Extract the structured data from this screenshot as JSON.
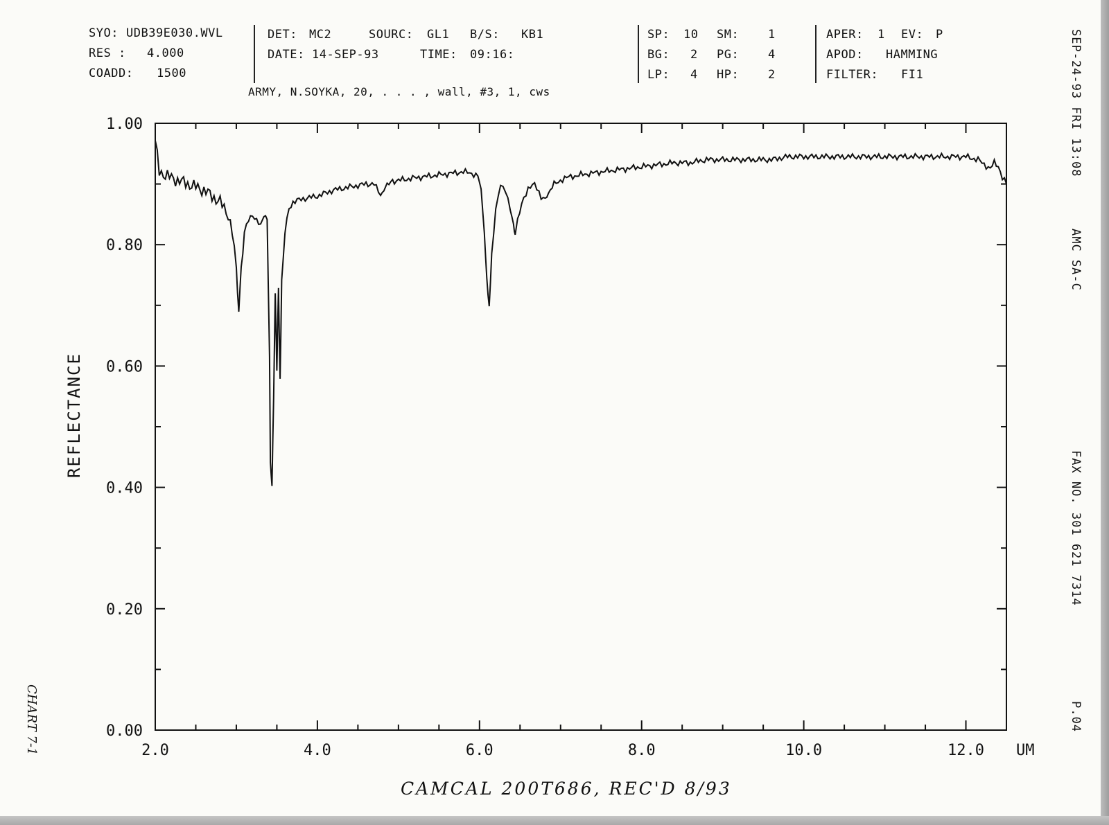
{
  "header": {
    "file_label": "SYO:",
    "file_value": "UDB39E030.WVL",
    "res_label": "RES :",
    "res_value": "4.000",
    "coadd_label": "COADD:",
    "coadd_value": "1500",
    "det_label": "DET:",
    "det_value": "MC2",
    "source_label": "SOURC:",
    "source_value": "GL1",
    "bs_label": "B/S:",
    "bs_value": "KB1",
    "date_label": "DATE:",
    "date_value": "14-SEP-93",
    "time_label": "TIME:",
    "time_value": "09:16:",
    "sample_note": "ARMY, N.SOYKA, 20, . . . , wall, #3, 1, cws",
    "sp_label": "SP:",
    "sp_value": "10",
    "sm_label": "SM:",
    "sm_value": "1",
    "bg_label": "BG:",
    "bg_value": "2",
    "pg_label": "PG:",
    "pg_value": "4",
    "lp_label": "LP:",
    "lp_value": "4",
    "hp_label": "HP:",
    "hp_value": "2",
    "aper_label": "APER:",
    "aper_value": "1",
    "ev_label": "EV:",
    "ev_value": "P",
    "apod_label": "APOD:",
    "apod_value": "HAMMING",
    "filter_label": "FILTER:",
    "filter_value": "FI1"
  },
  "fax": {
    "timestamp": "SEP-24-93 FRI 13:08",
    "sender": "AMC SA-C",
    "fax_number": "FAX NO. 301 621 7314",
    "page": "P.04"
  },
  "annotations": {
    "handwritten_bottom": "CAMCAL 200T686, REC'D 8/93",
    "handwritten_left": "CHART 7-1"
  },
  "chart_data": {
    "type": "line",
    "title": "",
    "xlabel": "UM",
    "ylabel": "REFLECTANCE",
    "xlim": [
      2.0,
      12.5
    ],
    "ylim": [
      0.0,
      1.0
    ],
    "xticks": [
      "2.0",
      "4.0",
      "6.0",
      "8.0",
      "10.0",
      "12.0"
    ],
    "yticks": [
      "0.00",
      "0.20",
      "0.40",
      "0.60",
      "0.80",
      "1.00"
    ],
    "grid": false,
    "series": [
      {
        "x": [
          2.0,
          2.05,
          2.2,
          2.4,
          2.6,
          2.8,
          2.9,
          2.95,
          3.0,
          3.03,
          3.06,
          3.1,
          3.15,
          3.2,
          3.25,
          3.3,
          3.34,
          3.38,
          3.41,
          3.42,
          3.44,
          3.46,
          3.48,
          3.5,
          3.52,
          3.54,
          3.56,
          3.6,
          3.65,
          3.7,
          3.8,
          4.0,
          4.2,
          4.4,
          4.6,
          4.7,
          4.78,
          4.82,
          4.86,
          4.95,
          5.2,
          5.5,
          5.8,
          5.98,
          6.02,
          6.06,
          6.09,
          6.12,
          6.15,
          6.2,
          6.26,
          6.32,
          6.38,
          6.42,
          6.44,
          6.47,
          6.52,
          6.6,
          6.68,
          6.76,
          6.81,
          6.85,
          6.92,
          7.05,
          7.25,
          7.5,
          7.8,
          8.1,
          8.4,
          8.6,
          8.8,
          9.0,
          9.3,
          9.6,
          9.8,
          10.0,
          10.2,
          10.5,
          10.8,
          11.1,
          11.4,
          11.7,
          12.0,
          12.15,
          12.25,
          12.3,
          12.35,
          12.4,
          12.45,
          12.5
        ],
        "y": [
          0.97,
          0.92,
          0.91,
          0.9,
          0.89,
          0.87,
          0.85,
          0.82,
          0.76,
          0.69,
          0.76,
          0.82,
          0.84,
          0.85,
          0.84,
          0.83,
          0.85,
          0.84,
          0.62,
          0.44,
          0.4,
          0.55,
          0.72,
          0.59,
          0.73,
          0.58,
          0.74,
          0.82,
          0.86,
          0.87,
          0.875,
          0.88,
          0.89,
          0.895,
          0.9,
          0.9,
          0.88,
          0.89,
          0.9,
          0.905,
          0.91,
          0.915,
          0.92,
          0.915,
          0.89,
          0.82,
          0.74,
          0.7,
          0.78,
          0.86,
          0.9,
          0.89,
          0.86,
          0.83,
          0.82,
          0.84,
          0.87,
          0.89,
          0.9,
          0.88,
          0.875,
          0.885,
          0.9,
          0.91,
          0.915,
          0.92,
          0.925,
          0.93,
          0.935,
          0.935,
          0.94,
          0.94,
          0.94,
          0.94,
          0.945,
          0.945,
          0.945,
          0.945,
          0.945,
          0.945,
          0.945,
          0.945,
          0.945,
          0.94,
          0.93,
          0.925,
          0.935,
          0.93,
          0.91,
          0.9
        ]
      }
    ]
  }
}
